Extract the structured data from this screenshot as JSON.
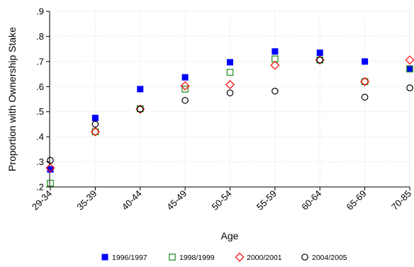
{
  "chart_data": {
    "type": "scatter",
    "xlabel": "Age",
    "ylabel": "Proportion with Ownership Stake",
    "ylim": [
      0.2,
      0.9
    ],
    "yticks": [
      ".2",
      ".3",
      ".4",
      ".5",
      ".6",
      ".7",
      ".8",
      ".9"
    ],
    "ytick_values": [
      0.2,
      0.3,
      0.4,
      0.5,
      0.6,
      0.7,
      0.8,
      0.9
    ],
    "categories": [
      "29-34",
      "35-39",
      "40-44",
      "45-49",
      "50-54",
      "55-59",
      "60-64",
      "65-69",
      "70-85"
    ],
    "grid": true,
    "legend_position": "bottom",
    "series": [
      {
        "name": "1996/1997",
        "marker": "filled-square",
        "color": "#0000ff",
        "values": [
          0.27,
          0.475,
          0.59,
          0.637,
          0.697,
          0.74,
          0.735,
          0.7,
          0.672
        ]
      },
      {
        "name": "1998/1999",
        "marker": "hollow-square",
        "color": "#1a8a1a",
        "values": [
          0.215,
          0.42,
          0.512,
          0.59,
          0.657,
          0.71,
          0.706,
          0.62,
          0.67
        ]
      },
      {
        "name": "2000/2001",
        "marker": "hollow-diamond",
        "color": "#ff0000",
        "values": [
          0.276,
          0.42,
          0.51,
          0.603,
          0.608,
          0.685,
          0.706,
          0.62,
          0.706
        ]
      },
      {
        "name": "2004/2005",
        "marker": "hollow-circle",
        "color": "#000000",
        "values": [
          0.306,
          0.45,
          0.51,
          0.545,
          0.575,
          0.582,
          0.706,
          0.558,
          0.595
        ]
      }
    ]
  }
}
